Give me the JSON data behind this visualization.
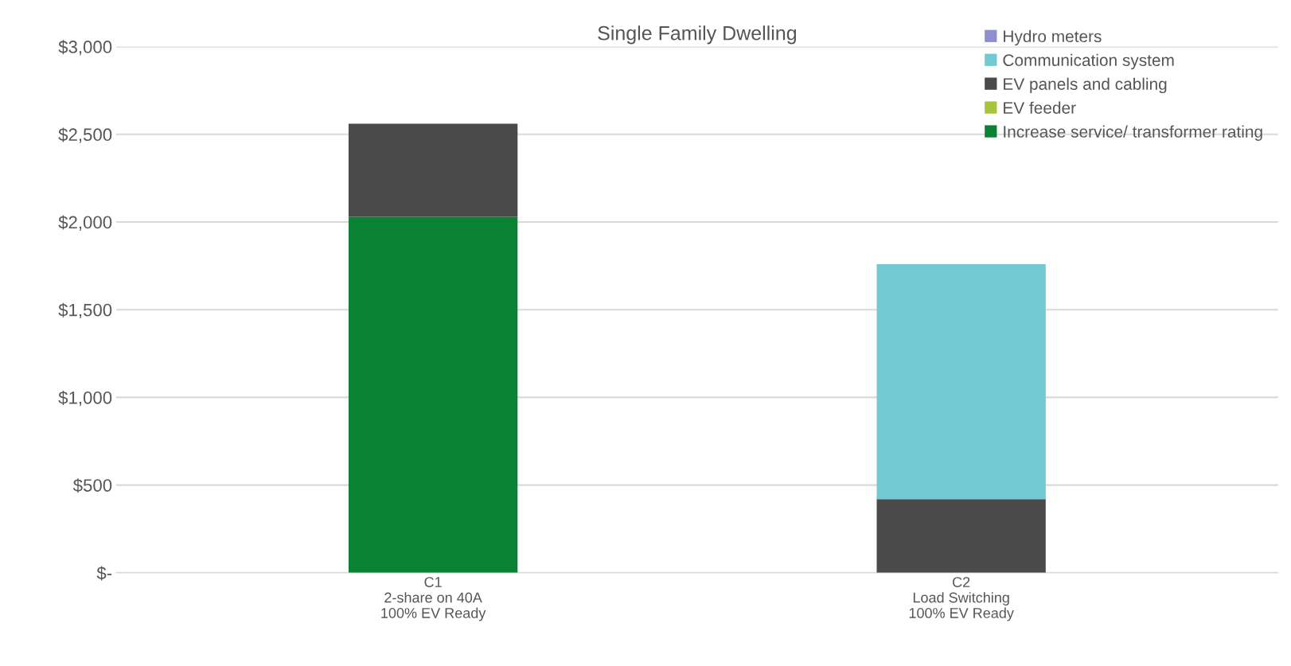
{
  "chart_data": {
    "type": "bar",
    "title": "Single Family Dwelling",
    "stacked": true,
    "categories": [
      "C1\n2-share on 40A\n100% EV Ready",
      "C2\nLoad Switching\n100% EV Ready"
    ],
    "series": [
      {
        "name": "Increase service/ transformer rating",
        "color": "#0a8234",
        "values": [
          2030,
          null
        ]
      },
      {
        "name": "EV feeder",
        "color": "#a8c43a",
        "values": [
          null,
          null
        ]
      },
      {
        "name": "EV panels and cabling",
        "color": "#4a4a4a",
        "values": [
          530,
          420
        ]
      },
      {
        "name": "Communication system",
        "color": "#74c8d4",
        "values": [
          null,
          1340
        ]
      },
      {
        "name": "Hydro meters",
        "color": "#8e8fcc",
        "values": [
          null,
          null
        ]
      }
    ],
    "ylim": [
      0,
      3000
    ],
    "yticks": [
      {
        "value": 0,
        "label": "$-"
      },
      {
        "value": 500,
        "label": "$500"
      },
      {
        "value": 1000,
        "label": "$1,000"
      },
      {
        "value": 1500,
        "label": "$1,500"
      },
      {
        "value": 2000,
        "label": "$2,000"
      },
      {
        "value": 2500,
        "label": "$2,500"
      },
      {
        "value": 3000,
        "label": "$3,000"
      }
    ],
    "grid": "y",
    "legend": "top right"
  }
}
